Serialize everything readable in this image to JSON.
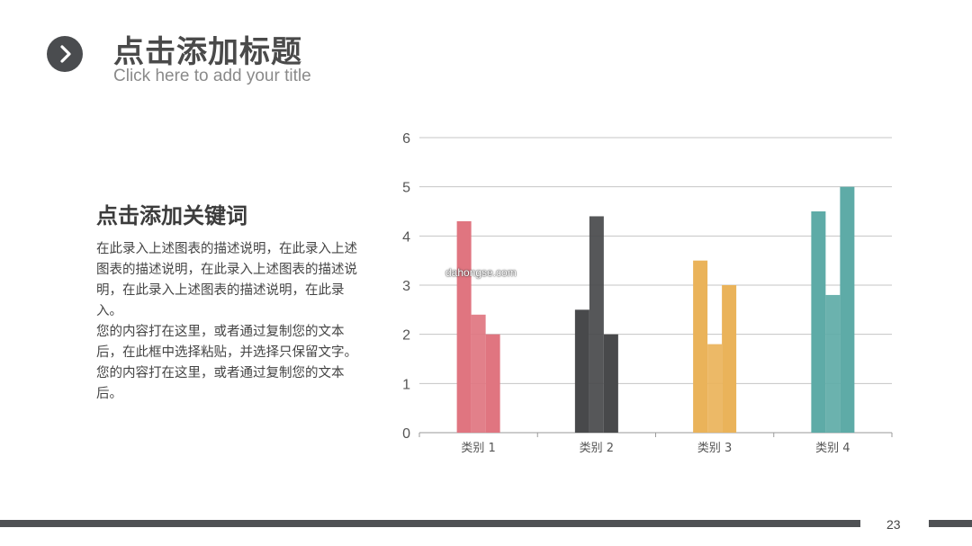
{
  "header": {
    "title": "点击添加标题",
    "subtitle": "Click here to add your title",
    "badge_icon": "chevron-right-icon"
  },
  "content": {
    "keyword_heading": "点击添加关键词",
    "paragraph_1": "在此录入上述图表的描述说明，在此录入上述图表的描述说明，在此录入上述图表的描述说明，在此录入上述图表的描述说明，在此录入。",
    "paragraph_2": "您的内容打在这里，或者通过复制您的文本后，在此框中选择粘贴，并选择只保留文字。您的内容打在这里，或者通过复制您的文本后。"
  },
  "watermark": "dahongse.com",
  "page_number": "23",
  "colors": {
    "dark": "#4a4c4f",
    "series_1": "#e07580",
    "series_2": "#48494b",
    "series_3": "#eab35a",
    "series_4": "#5eaba7"
  },
  "chart_data": {
    "type": "bar",
    "categories": [
      "类别 1",
      "类别 2",
      "类别 3",
      "类别 4"
    ],
    "groups": [
      {
        "category": "类别 1",
        "values": [
          4.3,
          2.4,
          2.0
        ],
        "color": "#e07580"
      },
      {
        "category": "类别 2",
        "values": [
          2.5,
          4.4,
          2.0
        ],
        "color": "#48494b"
      },
      {
        "category": "类别 3",
        "values": [
          3.5,
          1.8,
          3.0
        ],
        "color": "#eab35a"
      },
      {
        "category": "类别 4",
        "values": [
          4.5,
          2.8,
          5.0
        ],
        "color": "#5eaba7"
      }
    ],
    "y_ticks": [
      "0",
      "1",
      "2",
      "3",
      "4",
      "5",
      "6"
    ],
    "ylim": [
      0,
      6
    ],
    "grid": true,
    "legend": "none",
    "title": "",
    "xlabel": "",
    "ylabel": ""
  }
}
